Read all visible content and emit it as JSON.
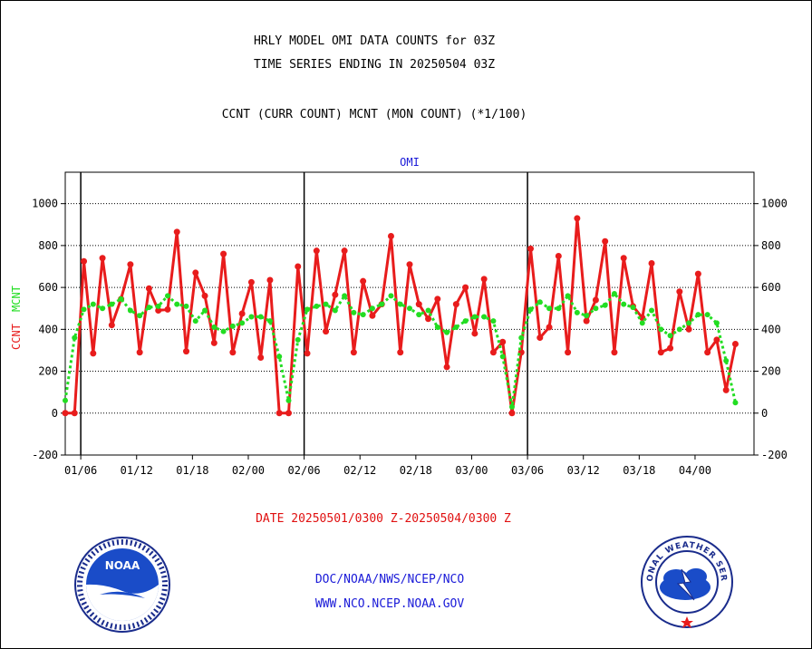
{
  "header": {
    "title_line1": "HRLY MODEL OMI DATA COUNTS for 03Z",
    "title_line2": "TIME SERIES ENDING IN 20250504 03Z",
    "subtitle": "CCNT (CURR COUNT) MCNT (MON COUNT) (*1/100)"
  },
  "footer": {
    "date_range": "DATE 20250501/0300 Z-20250504/0300 Z",
    "credit_line1": "DOC/NOAA/NWS/NCEP/NCO",
    "credit_line2": "WWW.NCO.NCEP.NOAA.GOV"
  },
  "logos": {
    "left": "NOAA",
    "right": "NATIONAL WEATHER SERVICE"
  },
  "colors": {
    "ccnt": "#e81c1c",
    "mcnt": "#22dd22",
    "panel_label": "#1a1ad8"
  },
  "chart_data": {
    "type": "line",
    "panel_label": "OMI",
    "ylabel_parts": [
      "CCNT",
      "MCNT"
    ],
    "ylim": [
      -200,
      1150
    ],
    "yticks": [
      -200,
      0,
      200,
      400,
      600,
      800,
      1000
    ],
    "grid": true,
    "x_hours_per_point": 3,
    "x_start_hours": -6,
    "x_range_hours": [
      -6,
      216
    ],
    "x_tick_hours": [
      -1,
      71,
      143
    ],
    "x_tick_offsets": [
      18,
      36,
      54
    ],
    "x_tick_labels": [
      "01/06",
      "01/12",
      "01/18",
      "02/00",
      "02/06",
      "02/12",
      "02/18",
      "03/00",
      "03/06",
      "03/12",
      "03/18",
      "04/00"
    ],
    "day_boundary_labels": [
      "02/00",
      "03/00",
      "04/00"
    ],
    "series": [
      {
        "name": "CCNT",
        "values": [
          0,
          0,
          725,
          285,
          740,
          420,
          545,
          710,
          290,
          595,
          490,
          495,
          865,
          295,
          670,
          560,
          335,
          760,
          290,
          475,
          625,
          265,
          635,
          0,
          0,
          700,
          285,
          775,
          390,
          565,
          775,
          290,
          630,
          465,
          520,
          845,
          290,
          710,
          520,
          450,
          545,
          220,
          520,
          600,
          380,
          640,
          290,
          340,
          0,
          290,
          785,
          360,
          410,
          750,
          290,
          930,
          440,
          540,
          820,
          290,
          740,
          510,
          455,
          715,
          290,
          310,
          580,
          400,
          665,
          290,
          350,
          110,
          330
        ]
      },
      {
        "name": "MCNT",
        "values": [
          60,
          360,
          495,
          520,
          500,
          520,
          545,
          490,
          465,
          505,
          510,
          560,
          520,
          510,
          440,
          490,
          410,
          390,
          415,
          430,
          460,
          460,
          440,
          270,
          60,
          350,
          495,
          510,
          520,
          490,
          560,
          480,
          470,
          500,
          520,
          560,
          520,
          500,
          470,
          490,
          410,
          385,
          410,
          440,
          460,
          460,
          440,
          270,
          30,
          360,
          495,
          530,
          500,
          500,
          560,
          480,
          465,
          500,
          515,
          570,
          520,
          505,
          430,
          490,
          400,
          370,
          400,
          430,
          470,
          470,
          430,
          250,
          50
        ]
      }
    ]
  }
}
